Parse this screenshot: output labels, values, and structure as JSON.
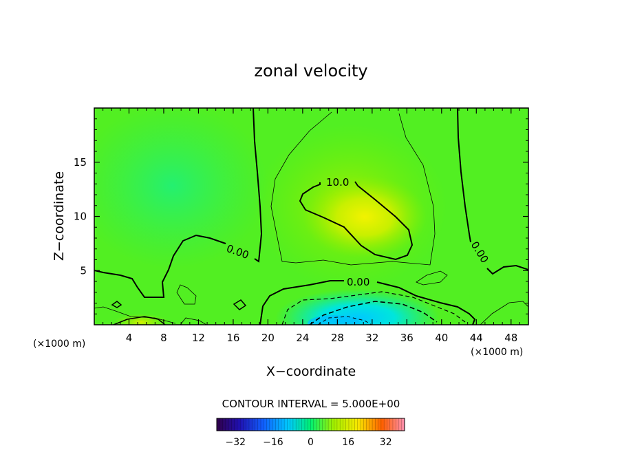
{
  "chart_data": {
    "type": "heatmap",
    "title": "zonal velocity",
    "xlabel": "X−coordinate",
    "ylabel": "Z−coordinate",
    "x_unit_left": "(×1000 m)",
    "x_unit_right": "(×1000 m)",
    "xlim": [
      0,
      50
    ],
    "ylim": [
      0,
      20
    ],
    "x_ticks": [
      "4",
      "8",
      "12",
      "16",
      "20",
      "24",
      "28",
      "32",
      "36",
      "40",
      "44",
      "48"
    ],
    "y_ticks": [
      "5",
      "10",
      "15"
    ],
    "contour_interval_text": "CONTOUR INTERVAL = 5.000E+00",
    "contour_labels": [
      "10.0",
      "0.00",
      "0.00",
      "0.00"
    ],
    "colorbar": {
      "range": [
        -40,
        40
      ],
      "tick_labels": [
        "−32",
        "−16",
        "0",
        "16",
        "32"
      ],
      "tick_values": [
        -32,
        -16,
        0,
        16,
        32
      ]
    },
    "features": [
      {
        "kind": "max",
        "x": 32,
        "z": 9.5,
        "value": 13
      },
      {
        "kind": "min",
        "x": 29,
        "z": 0.3,
        "value": -18
      }
    ]
  }
}
